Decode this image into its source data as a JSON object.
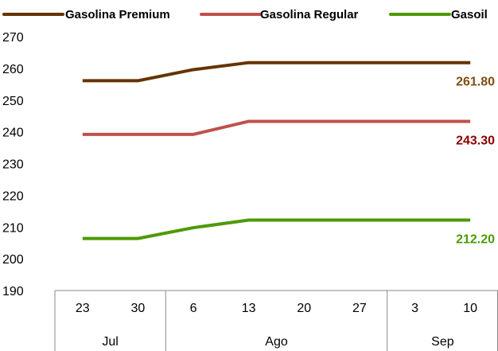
{
  "chart_data": {
    "type": "line",
    "categories": [
      "23",
      "30",
      "6",
      "13",
      "20",
      "27",
      "3",
      "10"
    ],
    "groups": [
      {
        "label": "Jul",
        "start": 0,
        "end": 1
      },
      {
        "label": "Ago",
        "start": 2,
        "end": 5
      },
      {
        "label": "Sep",
        "start": 6,
        "end": 7
      }
    ],
    "ylim": [
      190,
      270
    ],
    "yticks": [
      190,
      200,
      210,
      220,
      230,
      240,
      250,
      260,
      270
    ],
    "grid": false,
    "legend_position": "top",
    "series": [
      {
        "name": "Gasolina Premium",
        "color": "#663300",
        "label_color": "#7f4d13",
        "values": [
          256.1,
          256.1,
          259.6,
          261.8,
          261.8,
          261.8,
          261.8,
          261.8
        ],
        "end_label": "261.80"
      },
      {
        "name": "Gasolina Regular",
        "color": "#c0504d",
        "label_color": "#8b0000",
        "values": [
          239.2,
          239.2,
          239.2,
          243.3,
          243.3,
          243.3,
          243.3,
          243.3
        ],
        "end_label": "243.30"
      },
      {
        "name": "Gasoil",
        "color": "#4e9a06",
        "label_color": "#4e9a06",
        "values": [
          206.4,
          206.4,
          209.8,
          212.2,
          212.2,
          212.2,
          212.2,
          212.2
        ],
        "end_label": "212.20"
      }
    ]
  }
}
